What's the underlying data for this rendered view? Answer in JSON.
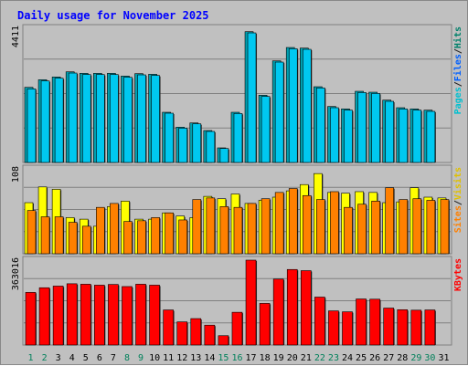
{
  "chart_data": {
    "type": "bar",
    "title": "Daily usage for November 2025",
    "categories": [
      "1",
      "2",
      "3",
      "4",
      "5",
      "6",
      "7",
      "8",
      "9",
      "10",
      "11",
      "12",
      "13",
      "14",
      "15",
      "16",
      "17",
      "18",
      "19",
      "20",
      "21",
      "22",
      "23",
      "24",
      "25",
      "26",
      "27",
      "28",
      "29",
      "30",
      "31"
    ],
    "weekend_days": [
      "1",
      "2",
      "8",
      "9",
      "15",
      "16",
      "22",
      "23",
      "29",
      "30"
    ],
    "panels": [
      {
        "id": "hits",
        "max_label": "4411",
        "ymax": 4411,
        "side_label": [
          {
            "text": "Pages",
            "color": "#00c0d0"
          },
          {
            "text": "/",
            "color": "#202020"
          },
          {
            "text": "Files",
            "color": "#0060ff"
          },
          {
            "text": "/",
            "color": "#202020"
          },
          {
            "text": "Hits",
            "color": "#00806a"
          }
        ],
        "series": [
          {
            "name": "Hits",
            "color": "#00a0b0",
            "values": [
              2470,
              2720,
              2810,
              2980,
              2930,
              2930,
              2930,
              2840,
              2920,
              2900,
              1650,
              1160,
              1300,
              1050,
              480,
              1650,
              4300,
              2210,
              3340,
              3780,
              3760,
              2490,
              1840,
              1760,
              2340,
              2310,
              2050,
              1800,
              1760,
              1720,
              0
            ]
          },
          {
            "name": "Files",
            "color": "#00c8f0",
            "values": [
              2420,
              2680,
              2770,
              2940,
              2890,
              2890,
              2890,
              2800,
              2880,
              2860,
              1620,
              1130,
              1270,
              1020,
              460,
              1610,
              4260,
              2170,
              3300,
              3740,
              3720,
              2450,
              1800,
              1720,
              2300,
              2270,
              2010,
              1760,
              1720,
              1680,
              0
            ]
          }
        ]
      },
      {
        "id": "visits",
        "max_label": "108",
        "ymax": 108,
        "side_label": [
          {
            "text": "Sites",
            "color": "#ff8000"
          },
          {
            "text": "/",
            "color": "#202020"
          },
          {
            "text": "Visits",
            "color": "#e0c000"
          }
        ],
        "series": [
          {
            "name": "Visits",
            "color": "#ffff00",
            "values": [
              65,
              85,
              82,
              46,
              44,
              35,
              60,
              67,
              44,
              44,
              52,
              48,
              46,
              73,
              70,
              76,
              64,
              68,
              72,
              80,
              88,
              102,
              78,
              77,
              79,
              78,
              65,
              66,
              84,
              72,
              71
            ]
          },
          {
            "name": "Sites",
            "color": "#ff8000",
            "values": [
              55,
              47,
              47,
              40,
              35,
              59,
              64,
              41,
              42,
              46,
              52,
              43,
              69,
              71,
              60,
              59,
              64,
              70,
              78,
              83,
              74,
              69,
              79,
              59,
              63,
              67,
              84,
              69,
              70,
              68,
              69
            ]
          }
        ]
      },
      {
        "id": "kbytes",
        "max_label": "363016",
        "ymax": 363016,
        "side_label": [
          {
            "text": "KBytes",
            "color": "#ff0000"
          }
        ],
        "series": [
          {
            "name": "KBytes",
            "color": "#ff0000",
            "values": [
              225000,
              245000,
              252000,
              262000,
              260000,
              256000,
              259000,
              250000,
              260000,
              256000,
              150000,
              99000,
              113000,
              85000,
              40000,
              140000,
              363016,
              178000,
              282000,
              323000,
              318000,
              205000,
              146000,
              142000,
              197000,
              196000,
              158000,
              151000,
              149000,
              150000,
              0
            ]
          }
        ]
      }
    ]
  }
}
